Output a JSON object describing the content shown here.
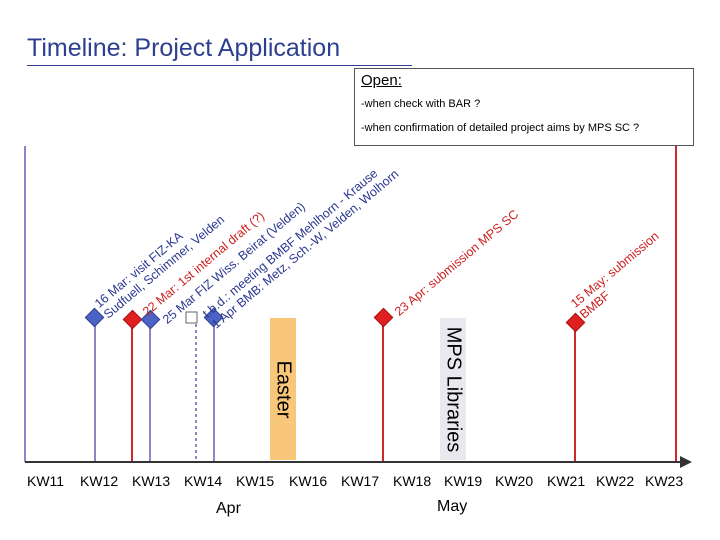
{
  "title": "Timeline: Project Application",
  "open": {
    "heading": "Open:",
    "items": [
      "-when check with BAR ?",
      "-when confirmation of detailed project aims by MPS SC ?"
    ]
  },
  "axis": {
    "weeks": [
      "KW11",
      "KW12",
      "KW13",
      "KW14",
      "KW15",
      "KW16",
      "KW17",
      "KW18",
      "KW19",
      "KW20",
      "KW21",
      "KW22",
      "KW23"
    ],
    "months": [
      "Apr",
      "May"
    ]
  },
  "phases": {
    "easter": "Easter",
    "libraries": "MPS Libraries"
  },
  "events": [
    {
      "lines": [
        "16 Mar: visit FIZ-KA",
        "Sudfuell, Schimmer, Velden"
      ]
    },
    {
      "lines": [
        "22 Mar: 1st internal draft (?)"
      ]
    },
    {
      "lines": [
        "25 Mar FIZ Wiss. Beirat (Velden)"
      ]
    },
    {
      "lines": [
        "t.b.d.: meeting BMBF Mehlhorn - Krause",
        "1 Apr BMB: Metz, Sch.-W, Velden, Wolhorn"
      ]
    },
    {
      "lines": [
        "23 Apr: submission MPS SC"
      ]
    },
    {
      "lines": [
        "15 May: submission",
        "BMBF"
      ]
    }
  ],
  "colors": {
    "blue_line": "#8a86c9",
    "red_line": "#cc2b2b",
    "blue_marker": "#4a63c5",
    "red_marker": "#e02020",
    "easter_fill": "#f9c77a",
    "libraries_fill": "#e8e8ee",
    "note_blue": "#2b3790",
    "note_red": "#cc1f1f",
    "axis": "#333333"
  }
}
